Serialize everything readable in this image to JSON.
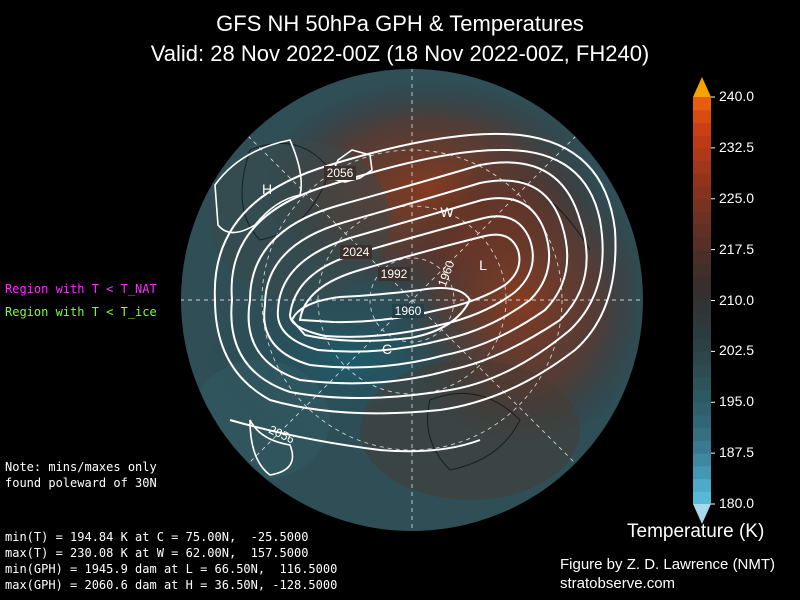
{
  "title_line1": "GFS NH 50hPa GPH & Temperatures",
  "title_line2": "Valid: 28 Nov 2022-00Z  (18 Nov 2022-00Z, FH240)",
  "legend": {
    "nat": {
      "text": "Region with T < T_NAT",
      "color": "#ff2bff"
    },
    "ice": {
      "text": "Region with T < T_ice",
      "color": "#7dff2b"
    }
  },
  "note_line1": "Note: mins/maxes only",
  "note_line2": "found poleward of 30N",
  "stats": {
    "min_t": "min(T) = 194.84 K at C = 75.00N,  -25.5000",
    "max_t": "max(T) = 230.08 K at W = 62.00N,  157.5000",
    "min_gph": "min(GPH) = 1945.9 dam at L = 66.50N,  116.5000",
    "max_gph": "max(GPH) = 2060.6 dam at H = 36.50N, -128.5000"
  },
  "map_markers": {
    "H": "H",
    "W": "W",
    "L": "L",
    "C": "C"
  },
  "contour_labels": [
    "2056",
    "2024",
    "1992",
    "1960",
    "1960",
    "2056"
  ],
  "colorbar": {
    "title": "Temperature (K)",
    "ticks": [
      "240.0",
      "232.5",
      "225.0",
      "217.5",
      "210.0",
      "202.5",
      "195.0",
      "187.5",
      "180.0"
    ],
    "min": 180.0,
    "max": 240.0
  },
  "credit_line1": "Figure by Z. D. Lawrence (NMT)",
  "credit_line2": "stratobserve.com"
}
